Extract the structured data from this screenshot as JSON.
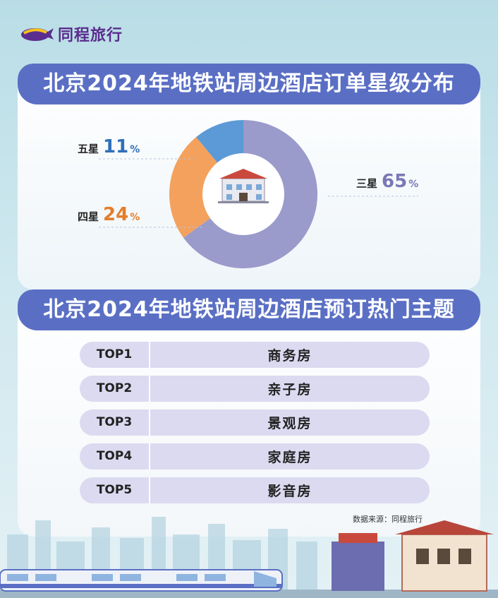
{
  "brand": {
    "name": "同程旅行"
  },
  "chart_data": {
    "type": "pie",
    "title": "北京2024年地铁站周边酒店订单星级分布",
    "slices": [
      {
        "label": "三星",
        "value": 65,
        "color": "#9a9acb"
      },
      {
        "label": "四星",
        "value": 24,
        "color": "#f4a15d"
      },
      {
        "label": "五星",
        "value": 11,
        "color": "#5b9ad6"
      }
    ],
    "unit": "%",
    "label_colors": {
      "三星": "#7b78b8",
      "四星": "#e47d2c",
      "五星": "#2f6fba"
    }
  },
  "themes": {
    "title": "北京2024年地铁站周边酒店预订热门主题",
    "items": [
      {
        "rank": "TOP1",
        "name": "商务房"
      },
      {
        "rank": "TOP2",
        "name": "亲子房"
      },
      {
        "rank": "TOP3",
        "name": "景观房"
      },
      {
        "rank": "TOP4",
        "name": "家庭房"
      },
      {
        "rank": "TOP5",
        "name": "影音房"
      }
    ]
  },
  "source": "数据来源：同程旅行",
  "icons": {
    "logo": "whale-logo-icon",
    "center": "hotel-building-icon"
  }
}
